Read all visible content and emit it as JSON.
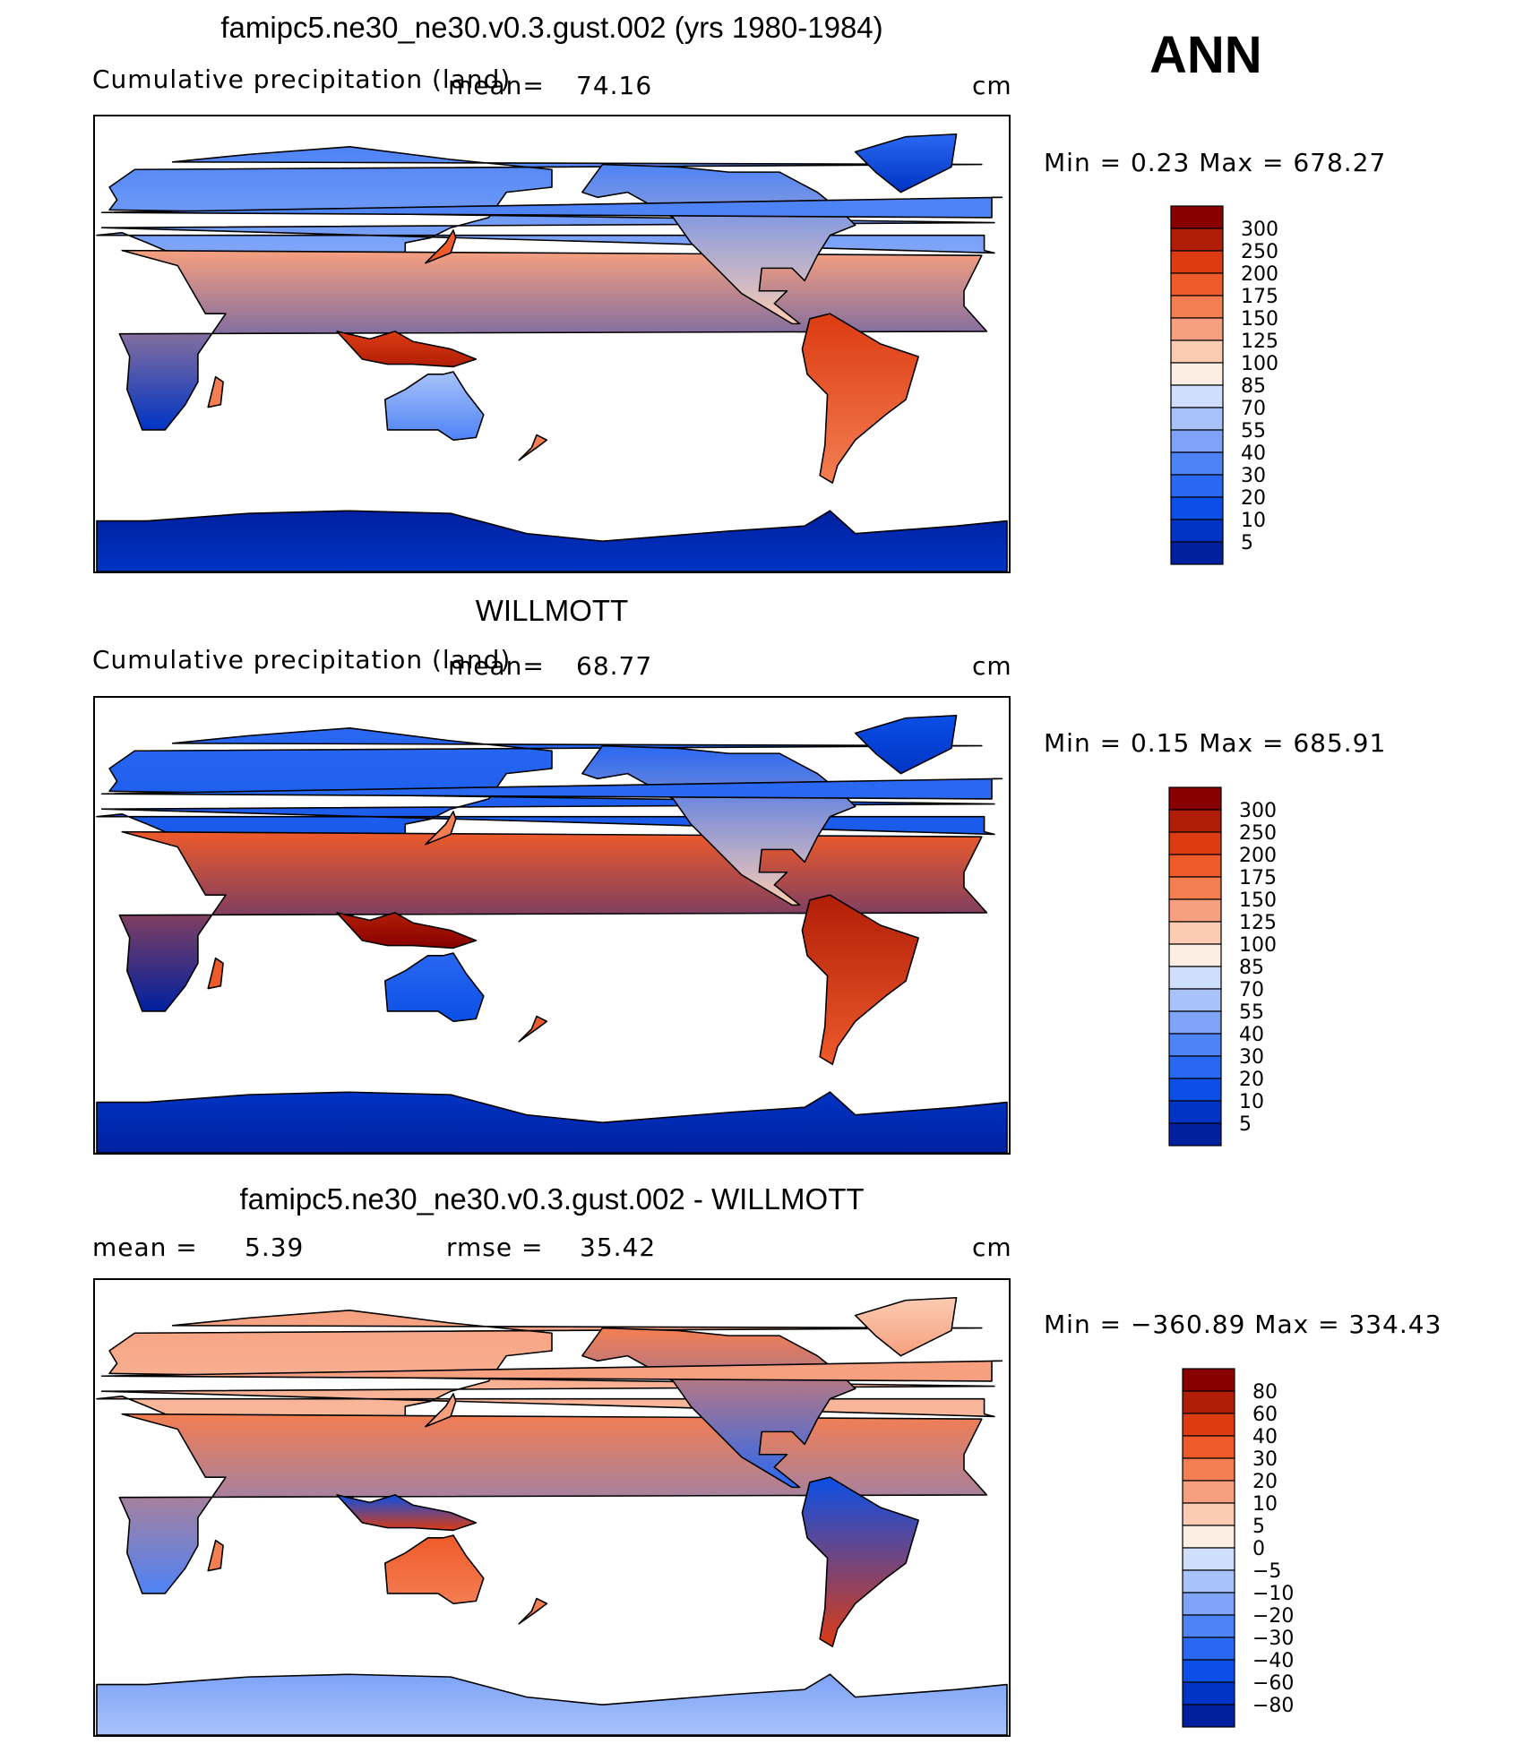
{
  "season": "ANN",
  "colors": {
    "abs_scale": [
      "#000080",
      "#0020a0",
      "#0034c4",
      "#0b4fe6",
      "#2a68f2",
      "#4e83f5",
      "#7ea3f7",
      "#a8c2fa",
      "#cfdefc",
      "#fdeee4",
      "#fbcbb2",
      "#f6a07f",
      "#f37e52",
      "#ee5a2a",
      "#dd3b12",
      "#b11e08",
      "#880000"
    ],
    "diff_scale": [
      "#000080",
      "#0020a0",
      "#0034c4",
      "#0b4fe6",
      "#2a68f2",
      "#4e83f5",
      "#7ea3f7",
      "#a8c2fa",
      "#cfdefc",
      "#fdeee4",
      "#fbcbb2",
      "#f6a07f",
      "#f37e52",
      "#ee5a2a",
      "#dd3b12",
      "#b11e08",
      "#880000"
    ]
  },
  "panels": [
    {
      "title": "famipc5.ne30_ne30.v0.3.gust.002 (yrs 1980-1984)",
      "field_label": "Cumulative precipitation (land)",
      "mean_label": "mean=",
      "mean_value": "74.16",
      "units": "cm",
      "minmax": "Min =    0.23 Max = 678.27",
      "colorbar_labels": [
        "300",
        "250",
        "200",
        "175",
        "150",
        "125",
        "100",
        "85",
        "70",
        "55",
        "40",
        "30",
        "20",
        "10",
        "5"
      ],
      "map_style": "model"
    },
    {
      "title": "WILLMOTT",
      "field_label": "Cumulative precipitation (land)",
      "mean_label": "mean=",
      "mean_value": "68.77",
      "units": "cm",
      "minmax": "Min =    0.15 Max = 685.91",
      "colorbar_labels": [
        "300",
        "250",
        "200",
        "175",
        "150",
        "125",
        "100",
        "85",
        "70",
        "55",
        "40",
        "30",
        "20",
        "10",
        "5"
      ],
      "map_style": "obs"
    },
    {
      "title": "famipc5.ne30_ne30.v0.3.gust.002 - WILLMOTT",
      "mean_label": "mean =",
      "mean_value": "5.39",
      "rmse_label": "rmse =",
      "rmse_value": "35.42",
      "units": "cm",
      "minmax": "Min = −360.89 Max = 334.43",
      "colorbar_labels": [
        "80",
        "60",
        "40",
        "30",
        "20",
        "10",
        "5",
        "0",
        "−5",
        "−10",
        "−20",
        "−30",
        "−40",
        "−60",
        "−80"
      ],
      "map_style": "diff"
    }
  ]
}
